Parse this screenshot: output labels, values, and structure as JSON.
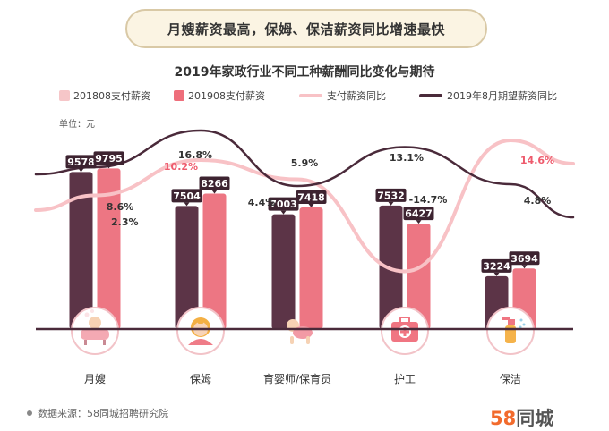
{
  "header": {
    "banner": "月嫂薪资最高，保姆、保洁薪资同比增速最快",
    "title": "2019年家政行业不同工种薪酬同比变化与期待"
  },
  "legend": [
    {
      "label": "201808支付薪资",
      "color": "#f6c6c8",
      "kind": "box"
    },
    {
      "label": "201908支付薪资",
      "color": "#ee6e7b",
      "kind": "box"
    },
    {
      "label": "支付薪资同比",
      "color": "#f8c2c6",
      "kind": "line"
    },
    {
      "label": "2019年8月期望薪资同比",
      "color": "#4a2a3a",
      "kind": "line"
    }
  ],
  "unit_label": "单位：元",
  "footer": {
    "source": "数据来源：58同城招聘研究院",
    "brand_num": "58",
    "brand_text": "同城"
  },
  "colors": {
    "bar_2018": "#5c3447",
    "bar_2019": "#ed7683",
    "line_paid": "#f8c2c6",
    "line_expected": "#4a2a3a",
    "label_box": "#3d2330",
    "highlight": "#ee5a6c",
    "baseline": "#4a2a3a",
    "icon_ring": "#f2c3c8"
  },
  "chart_data": {
    "type": "bar",
    "title": "2019年家政行业不同工种薪酬同比变化与期待",
    "unit": "元",
    "categories": [
      "月嫂",
      "保姆",
      "育婴师/保育员",
      "护工",
      "保洁"
    ],
    "series": [
      {
        "name": "201808支付薪资",
        "type": "bar",
        "values": [
          9578,
          7504,
          7003,
          7532,
          3224
        ]
      },
      {
        "name": "201908支付薪资",
        "type": "bar",
        "values": [
          9795,
          8266,
          7418,
          6427,
          3694
        ]
      },
      {
        "name": "支付薪资同比",
        "type": "line",
        "values": [
          2.3,
          10.2,
          5.9,
          -14.7,
          14.6
        ],
        "labels": [
          "2.3%",
          "10.2%",
          "5.9%",
          "-14.7%",
          "14.6%"
        ]
      },
      {
        "name": "2019年8月期望薪资同比",
        "type": "line",
        "values": [
          8.6,
          16.8,
          4.4,
          13.1,
          4.8
        ],
        "labels": [
          "8.6%",
          "16.8%",
          "4.4%",
          "13.1%",
          "4.8%"
        ]
      }
    ],
    "highlight_labels": [
      1,
      4
    ],
    "ylim": [
      0,
      10800
    ],
    "legend_position": "top",
    "grid": false
  }
}
